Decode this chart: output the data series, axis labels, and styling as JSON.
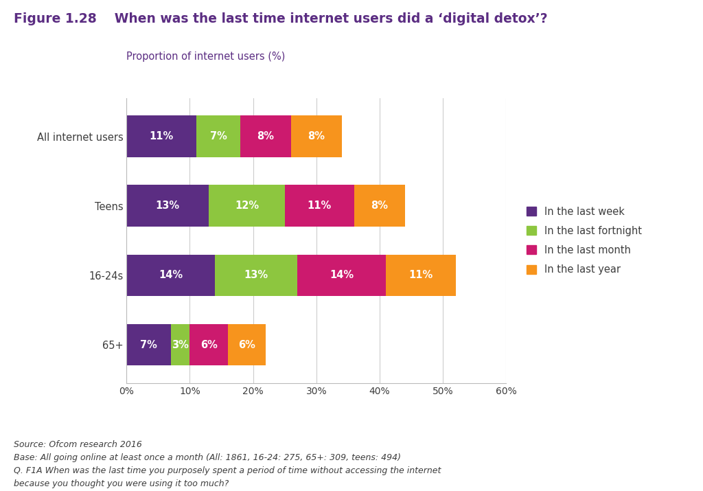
{
  "title_part1": "Figure 1.28",
  "title_part2": "When was the last time internet users did a ‘digital detox’?",
  "ylabel": "Proportion of internet users (%)",
  "categories": [
    "All internet users",
    "Teens",
    "16-24s",
    "65+"
  ],
  "series": {
    "In the last week": [
      11,
      13,
      14,
      7
    ],
    "In the last fortnight": [
      7,
      12,
      13,
      3
    ],
    "In the last month": [
      8,
      11,
      14,
      6
    ],
    "In the last year": [
      8,
      8,
      11,
      6
    ]
  },
  "colors": {
    "In the last week": "#5b2d82",
    "In the last fortnight": "#8dc63f",
    "In the last month": "#cc1a6e",
    "In the last year": "#f7941d"
  },
  "xlim": [
    0,
    60
  ],
  "xticks": [
    0,
    10,
    20,
    30,
    40,
    50,
    60
  ],
  "xtick_labels": [
    "0%",
    "10%",
    "20%",
    "30%",
    "40%",
    "50%",
    "60%"
  ],
  "bar_height": 0.6,
  "text_color_inside": "#ffffff",
  "grid_color": "#cccccc",
  "background_color": "#ffffff",
  "title_color": "#5b2d82",
  "ylabel_color": "#5b2d82",
  "footnote_lines": [
    "Source: Ofcom research 2016",
    "Base: All going online at least once a month (All: 1861, 16-24: 275, 65+: 309, teens: 494)",
    "Q. F1A When was the last time you purposely spent a period of time without accessing the internet",
    "because you thought you were using it too much?"
  ],
  "legend_order": [
    "In the last week",
    "In the last fortnight",
    "In the last month",
    "In the last year"
  ]
}
